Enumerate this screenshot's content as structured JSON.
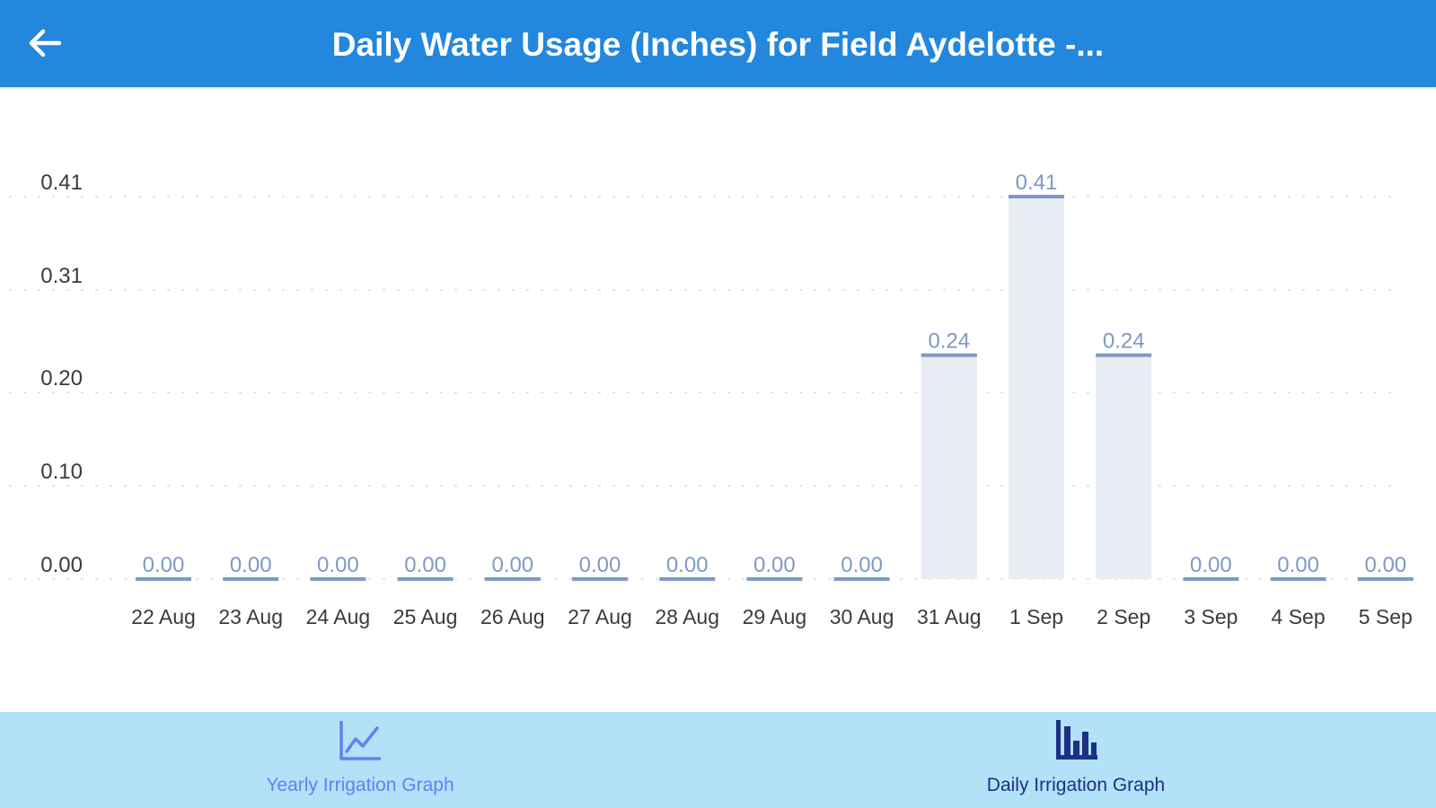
{
  "header": {
    "title": "Daily Water Usage (Inches) for Field Aydelotte -...",
    "back_icon": "arrow-left-icon",
    "background": "#2387dd"
  },
  "chart_data": {
    "type": "bar",
    "categories": [
      "22 Aug",
      "23 Aug",
      "24 Aug",
      "25 Aug",
      "26 Aug",
      "27 Aug",
      "28 Aug",
      "29 Aug",
      "30 Aug",
      "31 Aug",
      "1 Sep",
      "2 Sep",
      "3 Sep",
      "4 Sep",
      "5 Sep"
    ],
    "values": [
      0.0,
      0.0,
      0.0,
      0.0,
      0.0,
      0.0,
      0.0,
      0.0,
      0.0,
      0.24,
      0.41,
      0.24,
      0.0,
      0.0,
      0.0
    ],
    "value_labels": [
      "0.00",
      "0.00",
      "0.00",
      "0.00",
      "0.00",
      "0.00",
      "0.00",
      "0.00",
      "0.00",
      "0.24",
      "0.41",
      "0.24",
      "0.00",
      "0.00",
      "0.00"
    ],
    "y_ticks": [
      "0.00",
      "0.10",
      "0.20",
      "0.31",
      "0.41"
    ],
    "ylim": [
      0,
      0.41
    ],
    "grid": true,
    "legend": "none",
    "bar_fill": "#e8edf3",
    "bar_cap": "#7d9ac5",
    "label_color": "#7d9ac5",
    "grid_color": "#d7dce2"
  },
  "tabs": [
    {
      "label": "Yearly Irrigation Graph",
      "icon": "line-chart-icon",
      "active": false,
      "color": "#6b7cf4"
    },
    {
      "label": "Daily Irrigation Graph",
      "icon": "bar-chart-icon",
      "active": true,
      "color": "#1e2f86"
    }
  ],
  "tabbar_background": "#b3e1f7"
}
